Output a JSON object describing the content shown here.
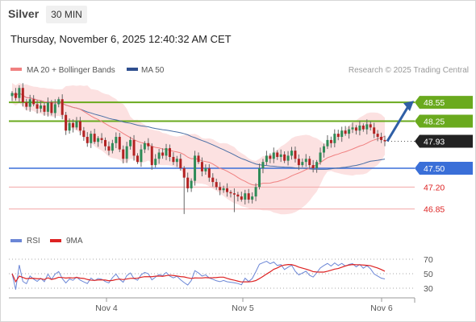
{
  "header": {
    "instrument": "Silver",
    "timeframe": "30 MIN",
    "timestamp": "Thursday, November 6, 2025 12:40:32 AM CET"
  },
  "colors": {
    "candle_up": "#2e8b57",
    "candle_down": "#b22222",
    "ma20": "#f08080",
    "bollinger_fill": "#fcdede",
    "ma50": "#4a6fa5",
    "resistance": "#6aaa1e",
    "pivot": "#3a6fd8",
    "support": "#f3a6a6",
    "current": "#222222",
    "arrow": "#2f5fa6",
    "rsi": "#6b86d6",
    "rsi_ma": "#dd2222"
  },
  "chart_data": [
    {
      "type": "candlestick",
      "title": "Silver",
      "ylim": [
        46.55,
        48.95
      ],
      "x_tick_labels": [
        "Nov 4",
        "Nov 5",
        "Nov 6"
      ],
      "legend": [
        {
          "name": "MA 20 + Bollinger Bands",
          "color": "#f08080"
        },
        {
          "name": "MA 50",
          "color": "#2f4f8f"
        }
      ],
      "legend_position": "top-left",
      "watermark": "Research © 2025 Trading Central",
      "close": [
        48.7,
        48.62,
        48.78,
        48.55,
        48.48,
        48.6,
        48.52,
        48.45,
        48.5,
        48.4,
        48.55,
        48.38,
        48.52,
        48.6,
        48.35,
        48.1,
        48.22,
        48.15,
        48.25,
        48.1,
        48.0,
        47.9,
        48.05,
        47.92,
        47.98,
        47.95,
        47.85,
        47.78,
        47.9,
        48.0,
        47.8,
        47.65,
        47.85,
        47.95,
        47.7,
        47.6,
        47.8,
        47.9,
        47.85,
        47.55,
        47.65,
        47.75,
        47.7,
        47.82,
        47.68,
        47.6,
        47.65,
        47.5,
        47.35,
        47.18,
        47.3,
        47.7,
        47.6,
        47.45,
        47.5,
        47.35,
        47.28,
        47.2,
        47.15,
        47.18,
        47.12,
        47.1,
        47.08,
        47.05,
        47.0,
        47.1,
        47.0,
        47.05,
        47.2,
        47.5,
        47.6,
        47.7,
        47.65,
        47.75,
        47.68,
        47.72,
        47.62,
        47.7,
        47.78,
        47.65,
        47.55,
        47.6,
        47.65,
        47.55,
        47.5,
        47.6,
        47.75,
        47.85,
        47.95,
        47.9,
        48.05,
        48.0,
        48.1,
        48.05,
        48.12,
        48.15,
        48.1,
        48.18,
        48.12,
        48.2,
        48.15,
        48.05,
        48.0,
        47.95,
        47.93
      ],
      "annotations": [
        {
          "label": "48.55",
          "value": 48.55,
          "kind": "resistance"
        },
        {
          "label": "48.25",
          "value": 48.25,
          "kind": "resistance"
        },
        {
          "label": "47.93",
          "value": 47.93,
          "kind": "current"
        },
        {
          "label": "47.50",
          "value": 47.5,
          "kind": "pivot"
        },
        {
          "label": "47.20",
          "value": 47.2,
          "kind": "support"
        },
        {
          "label": "46.85",
          "value": 46.85,
          "kind": "support"
        }
      ],
      "forecast_arrow": {
        "from": 47.93,
        "to": 48.55,
        "direction": "up"
      }
    },
    {
      "type": "line",
      "legend": [
        {
          "name": "RSI",
          "color": "#6b86d6"
        },
        {
          "name": "9MA",
          "color": "#dd2222"
        }
      ],
      "ylim": [
        20,
        80
      ],
      "y_tick_labels": [
        "70",
        "50",
        "30"
      ],
      "y_ticks": [
        70,
        50,
        30
      ]
    }
  ]
}
